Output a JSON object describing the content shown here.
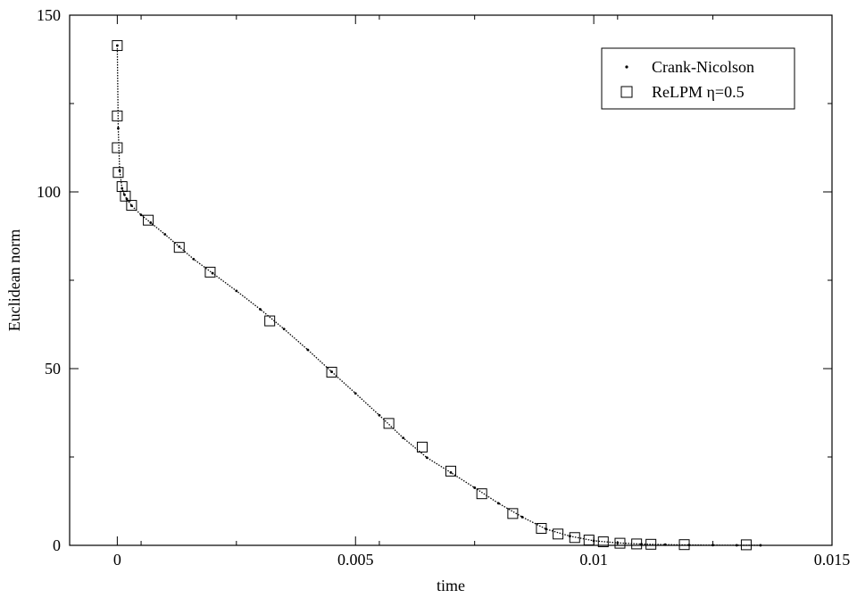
{
  "chart_data": {
    "type": "line",
    "xlabel": "time",
    "ylabel": "Euclidean norm",
    "xlim": [
      -0.001,
      0.015
    ],
    "ylim": [
      0,
      150
    ],
    "xticks": [
      0,
      0.005,
      0.01,
      0.015
    ],
    "xtick_labels": [
      "0",
      "0.005",
      "0.01",
      "0.015"
    ],
    "yticks": [
      0,
      50,
      100,
      150
    ],
    "ytick_labels": [
      "0",
      "50",
      "100",
      "150"
    ],
    "grid": false,
    "legend_position": "top-right",
    "series": [
      {
        "name": "Crank-Nicolson",
        "marker": "dot",
        "x": [
          0,
          2e-05,
          5e-05,
          0.0001,
          0.00015,
          0.0002,
          0.0003,
          0.0005,
          0.0007,
          0.001,
          0.0013,
          0.0016,
          0.002,
          0.0025,
          0.003,
          0.0035,
          0.004,
          0.0045,
          0.005,
          0.0055,
          0.006,
          0.0065,
          0.007,
          0.0075,
          0.008,
          0.0085,
          0.009,
          0.0095,
          0.01,
          0.0105,
          0.011,
          0.0115,
          0.012,
          0.0125,
          0.013,
          0.0135
        ],
        "y": [
          141.4,
          118,
          106,
          101,
          99.2,
          98,
          96.1,
          93.5,
          91.3,
          88,
          84.5,
          81,
          77,
          72,
          66.8,
          61.2,
          55.3,
          49.1,
          43,
          36.8,
          30.4,
          24.8,
          20.6,
          16.3,
          11.9,
          8,
          4.6,
          2.6,
          1.3,
          0.7,
          0.35,
          0.2,
          0.1,
          0.05,
          0.02,
          0.01
        ]
      },
      {
        "name": "ReLPM η=0.5",
        "marker": "square",
        "x": [
          0,
          0,
          0,
          2e-05,
          0.0001,
          0.00017,
          0.0003,
          0.00065,
          0.0013,
          0.00195,
          0.0032,
          0.0045,
          0.0057,
          0.0064,
          0.007,
          0.00765,
          0.0083,
          0.0089,
          0.00925,
          0.0096,
          0.0099,
          0.0102,
          0.01055,
          0.0109,
          0.0112,
          0.0119,
          0.0132
        ],
        "y": [
          141.4,
          121.5,
          112.5,
          105.5,
          101.5,
          98.8,
          96.2,
          92,
          84.3,
          77.3,
          63.5,
          49,
          34.5,
          27.8,
          21,
          14.6,
          9,
          4.8,
          3.2,
          2.2,
          1.5,
          1,
          0.6,
          0.4,
          0.3,
          0.2,
          0.15
        ]
      }
    ]
  }
}
